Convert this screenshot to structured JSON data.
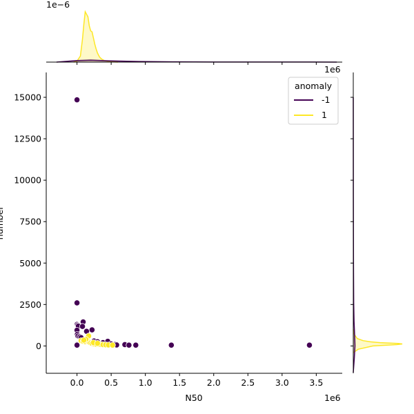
{
  "chart_data": {
    "type": "scatter",
    "title": "",
    "xlabel": "N50",
    "ylabel": "number",
    "xlim": [
      -450000,
      3880000
    ],
    "ylim": [
      -1650,
      16500
    ],
    "x_ticks": [
      0,
      500000,
      1000000,
      1500000,
      2000000,
      2500000,
      3000000,
      3500000
    ],
    "x_tick_labels": [
      "0.0",
      "0.5",
      "1.0",
      "1.5",
      "2.0",
      "2.5",
      "3.0",
      "3.5"
    ],
    "x_offset_label": "1e6",
    "y_ticks": [
      0,
      2500,
      5000,
      7500,
      10000,
      12500,
      15000
    ],
    "y_tick_labels": [
      "0",
      "2500",
      "5000",
      "7500",
      "10000",
      "12500",
      "15000"
    ],
    "top_marginal_offset_label": "1e−6",
    "right_marginal_offset_label": "1e6",
    "grid": false,
    "legend": {
      "title": "anomaly",
      "placement": "top-right",
      "entries": [
        {
          "label": "-1",
          "color": "#440154"
        },
        {
          "label": "1",
          "color": "#fde725"
        }
      ]
    },
    "series": [
      {
        "name": "-1",
        "color": "#440154",
        "points": [
          [
            0,
            14850
          ],
          [
            0,
            2600
          ],
          [
            0,
            1300
          ],
          [
            10000,
            1250
          ],
          [
            20000,
            1200
          ],
          [
            0,
            950
          ],
          [
            5000,
            700
          ],
          [
            15000,
            600
          ],
          [
            0,
            80
          ],
          [
            0,
            50
          ],
          [
            90000,
            1450
          ],
          [
            80000,
            1180
          ],
          [
            140000,
            880
          ],
          [
            220000,
            970
          ],
          [
            40000,
            550
          ],
          [
            60000,
            500
          ],
          [
            250000,
            300
          ],
          [
            300000,
            250
          ],
          [
            380000,
            200
          ],
          [
            450000,
            280
          ],
          [
            500000,
            120
          ],
          [
            560000,
            90
          ],
          [
            580000,
            60
          ],
          [
            700000,
            80
          ],
          [
            760000,
            50
          ],
          [
            860000,
            50
          ],
          [
            1380000,
            50
          ],
          [
            3400000,
            50
          ]
        ]
      },
      {
        "name": "1",
        "color": "#fde725",
        "points": [
          [
            60000,
            320
          ],
          [
            90000,
            280
          ],
          [
            120000,
            260
          ],
          [
            150000,
            300
          ],
          [
            180000,
            220
          ],
          [
            200000,
            180
          ],
          [
            220000,
            150
          ],
          [
            250000,
            120
          ],
          [
            280000,
            110
          ],
          [
            320000,
            100
          ],
          [
            350000,
            90
          ],
          [
            380000,
            80
          ],
          [
            420000,
            70
          ],
          [
            460000,
            60
          ],
          [
            520000,
            50
          ],
          [
            170000,
            600
          ],
          [
            130000,
            400
          ],
          [
            100000,
            350
          ],
          [
            240000,
            200
          ],
          [
            300000,
            160
          ]
        ]
      }
    ],
    "top_marginal": {
      "series": [
        {
          "name": "1",
          "x": [
            -50000,
            0,
            50000,
            80000,
            100000,
            120000,
            140000,
            160000,
            180000,
            200000,
            220000,
            240000,
            260000,
            280000,
            300000,
            330000,
            360000,
            400000,
            450000,
            520000,
            600000
          ],
          "density": [
            0,
            0.02,
            0.12,
            0.45,
            0.75,
            1.0,
            0.95,
            0.9,
            0.72,
            0.62,
            0.6,
            0.48,
            0.36,
            0.26,
            0.18,
            0.1,
            0.06,
            0.03,
            0.015,
            0.005,
            0
          ]
        },
        {
          "name": "-1",
          "x": [
            -300000,
            0,
            200000,
            500000,
            900000,
            1400000,
            2000000,
            3400000,
            3800000
          ],
          "density": [
            0,
            0.03,
            0.04,
            0.025,
            0.012,
            0.006,
            0.002,
            0.001,
            0
          ]
        }
      ]
    },
    "right_marginal": {
      "series": [
        {
          "name": "1",
          "y": [
            -400,
            -200,
            0,
            80,
            120,
            150,
            200,
            250,
            320,
            450,
            700,
            1000
          ],
          "density": [
            0,
            0.1,
            0.4,
            0.9,
            1.0,
            0.92,
            0.55,
            0.35,
            0.2,
            0.08,
            0.02,
            0
          ]
        },
        {
          "name": "-1",
          "y": [
            -1600,
            -800,
            0,
            500,
            1500,
            2600,
            5000,
            9000,
            15000
          ],
          "density": [
            0,
            0.02,
            0.035,
            0.03,
            0.015,
            0.008,
            0.004,
            0.002,
            0
          ]
        }
      ]
    }
  }
}
